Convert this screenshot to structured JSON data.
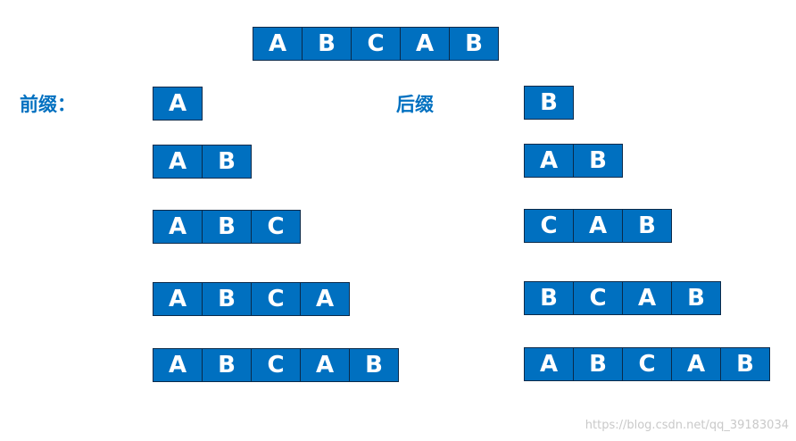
{
  "main_string": [
    "A",
    "B",
    "C",
    "A",
    "B"
  ],
  "prefix_label": "前缀：",
  "suffix_label": "后缀",
  "prefixes": [
    [
      "A"
    ],
    [
      "A",
      "B"
    ],
    [
      "A",
      "B",
      "C"
    ],
    [
      "A",
      "B",
      "C",
      "A"
    ],
    [
      "A",
      "B",
      "C",
      "A",
      "B"
    ]
  ],
  "suffixes": [
    [
      "B"
    ],
    [
      "A",
      "B"
    ],
    [
      "C",
      "A",
      "B"
    ],
    [
      "B",
      "C",
      "A",
      "B"
    ],
    [
      "A",
      "B",
      "C",
      "A",
      "B"
    ]
  ],
  "watermark": "https://blog.csdn.net/qq_39183034"
}
